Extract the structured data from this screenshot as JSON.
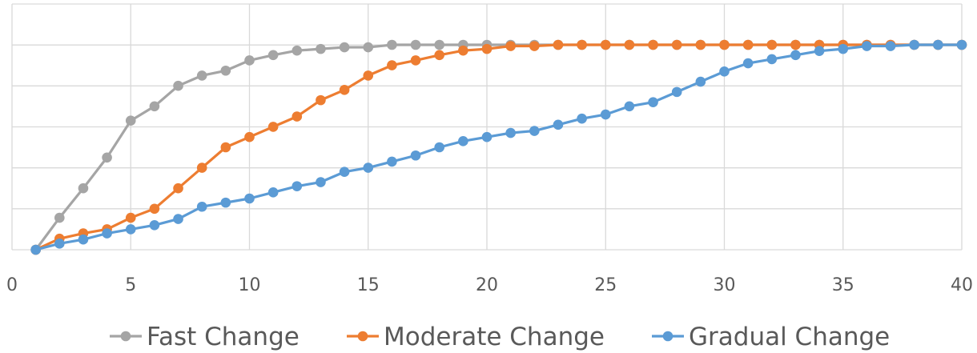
{
  "chart_data": {
    "type": "line",
    "title": "",
    "xlabel": "",
    "ylabel": "",
    "xlim": [
      0,
      40
    ],
    "ylim": [
      0,
      5
    ],
    "x_ticks": [
      "0",
      "5",
      "10",
      "15",
      "20",
      "25",
      "30",
      "35",
      "40"
    ],
    "y_gridlines": 6,
    "grid": true,
    "y_tick_labels_visible": false,
    "legend_position": "bottom",
    "x": [
      1,
      2,
      3,
      4,
      5,
      6,
      7,
      8,
      9,
      10,
      11,
      12,
      13,
      14,
      15,
      16,
      17,
      18,
      19,
      20,
      21,
      22,
      23,
      24,
      25,
      26,
      27,
      28,
      29,
      30,
      31,
      32,
      33,
      34,
      35,
      36,
      37,
      38,
      39,
      40
    ],
    "series": [
      {
        "name": "Fast Change",
        "color": "#a5a5a5",
        "values": [
          0,
          0.78,
          1.5,
          2.25,
          3.15,
          3.5,
          4.0,
          4.25,
          4.37,
          4.62,
          4.75,
          4.86,
          4.9,
          4.94,
          4.94,
          5,
          5,
          5,
          5,
          5,
          5,
          5,
          5,
          5,
          5,
          5,
          5,
          5,
          5,
          5,
          5,
          5,
          5,
          5,
          5,
          5,
          5,
          5,
          5,
          5
        ]
      },
      {
        "name": "Moderate Change",
        "color": "#ed7d31",
        "values": [
          0,
          0.27,
          0.4,
          0.5,
          0.78,
          1.0,
          1.5,
          2.0,
          2.5,
          2.75,
          3.0,
          3.25,
          3.65,
          3.9,
          4.25,
          4.5,
          4.62,
          4.75,
          4.86,
          4.9,
          4.97,
          4.97,
          5,
          5,
          5,
          5,
          5,
          5,
          5,
          5,
          5,
          5,
          5,
          5,
          5,
          5,
          5,
          5,
          5,
          5
        ]
      },
      {
        "name": "Gradual Change",
        "color": "#5b9bd5",
        "values": [
          0,
          0.15,
          0.25,
          0.4,
          0.5,
          0.6,
          0.75,
          1.05,
          1.15,
          1.25,
          1.4,
          1.55,
          1.65,
          1.9,
          2.0,
          2.15,
          2.3,
          2.5,
          2.65,
          2.75,
          2.85,
          2.9,
          3.05,
          3.2,
          3.3,
          3.5,
          3.6,
          3.85,
          4.1,
          4.35,
          4.55,
          4.65,
          4.75,
          4.85,
          4.9,
          4.97,
          4.97,
          5,
          5,
          5
        ]
      }
    ]
  }
}
